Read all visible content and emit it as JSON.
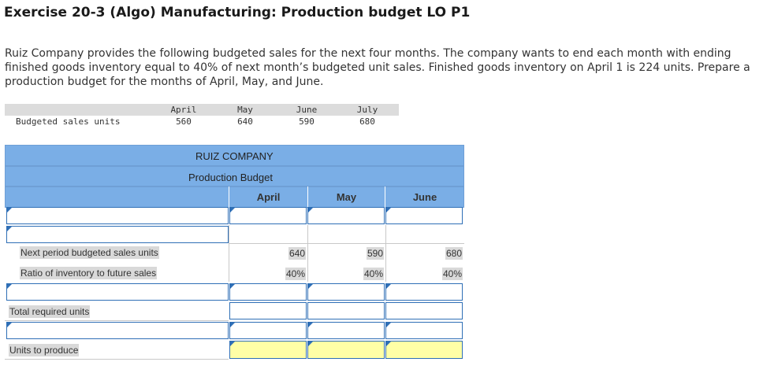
{
  "page": {
    "title": "Exercise 20-3 (Algo) Manufacturing: Production budget LO P1",
    "intro": "Ruiz Company provides the following budgeted sales for the next four months. The company wants to end each month with ending finished goods inventory equal to 40% of next month’s budgeted unit sales. Finished goods inventory on April 1 is 224 units. Prepare a production budget for the months of April, May, and June."
  },
  "sales_table": {
    "row_label": "Budgeted sales units",
    "months": [
      "April",
      "May",
      "June",
      "July"
    ],
    "values": [
      "560",
      "640",
      "590",
      "680"
    ]
  },
  "budget": {
    "company": "RUIZ COMPANY",
    "title": "Production Budget",
    "columns": [
      "April",
      "May",
      "June"
    ],
    "rows": {
      "next_sales": {
        "label": "Next period budgeted sales units",
        "values": [
          "640",
          "590",
          "680"
        ]
      },
      "ratio": {
        "label": "Ratio of inventory to future sales",
        "values": [
          "40%",
          "40%",
          "40%"
        ]
      },
      "total_required": {
        "label": "Total required units"
      },
      "units_to_produce": {
        "label": "Units to produce"
      }
    },
    "colors": {
      "header_band": "#7aaee6",
      "answer_cell": "#ffffa6",
      "input_border": "#2f6fb6"
    }
  }
}
